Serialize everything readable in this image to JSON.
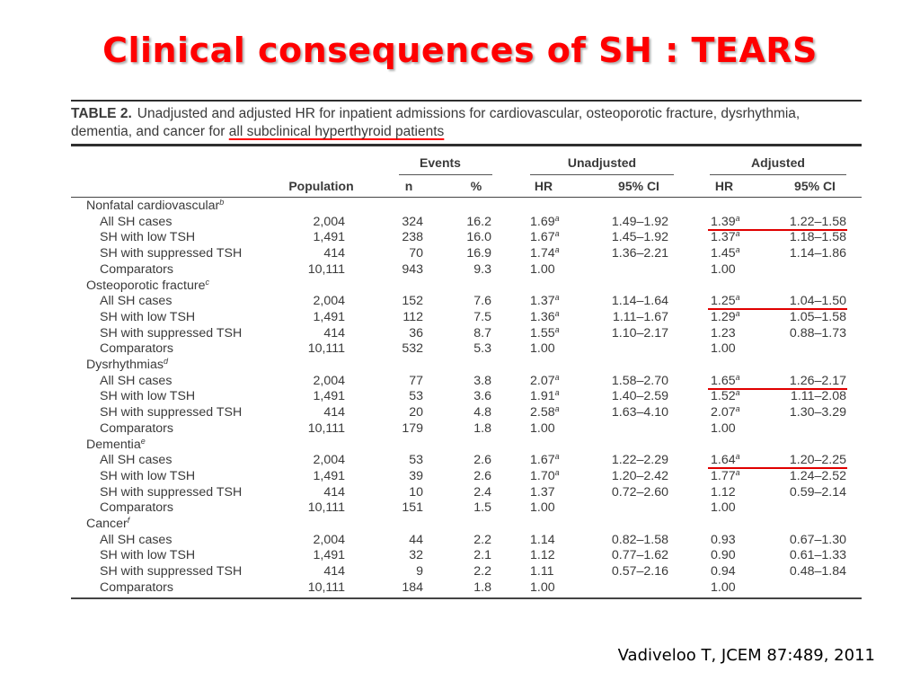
{
  "slide": {
    "title": "Clinical consequences of SH : TEARS",
    "citation": "Vadiveloo T, JCEM 87:489, 2011"
  },
  "table": {
    "label": "TABLE 2.",
    "caption_main": "Unadjusted and adjusted HR for inpatient admissions for cardiovascular, osteoporotic fracture, dysrhythmia, dementia, and cancer for ",
    "caption_underlined": "all subclinical hyperthyroid patients",
    "headers": {
      "events": "Events",
      "unadjusted": "Unadjusted",
      "adjusted": "Adjusted",
      "population": "Population",
      "n": "n",
      "pct": "%",
      "hr": "HR",
      "ci": "95% CI",
      "hr2": "HR",
      "ci2": "95% CI"
    },
    "rows": [
      {
        "kind": "group",
        "label": "Nonfatal cardiovascular",
        "sup": "b"
      },
      {
        "label": "All SH cases",
        "pop": "2,004",
        "n": "324",
        "pct": "16.2",
        "uhr": "1.69",
        "uhr_sup": "a",
        "uci": "1.49–1.92",
        "ahr": "1.39",
        "ahr_sup": "a",
        "aci": "1.22–1.58",
        "highlight": true
      },
      {
        "label": "SH with low TSH",
        "pop": "1,491",
        "n": "238",
        "pct": "16.0",
        "uhr": "1.67",
        "uhr_sup": "a",
        "uci": "1.45–1.92",
        "ahr": "1.37",
        "ahr_sup": "a",
        "aci": "1.18–1.58"
      },
      {
        "label": "SH with suppressed TSH",
        "pop": "414",
        "n": "70",
        "pct": "16.9",
        "uhr": "1.74",
        "uhr_sup": "a",
        "uci": "1.36–2.21",
        "ahr": "1.45",
        "ahr_sup": "a",
        "aci": "1.14–1.86"
      },
      {
        "label": "Comparators",
        "pop": "10,111",
        "n": "943",
        "pct": "9.3",
        "uhr": "1.00",
        "uci": "",
        "ahr": "1.00",
        "aci": ""
      },
      {
        "kind": "group",
        "label": "Osteoporotic fracture",
        "sup": "c"
      },
      {
        "label": "All SH cases",
        "pop": "2,004",
        "n": "152",
        "pct": "7.6",
        "uhr": "1.37",
        "uhr_sup": "a",
        "uci": "1.14–1.64",
        "ahr": "1.25",
        "ahr_sup": "a",
        "aci": "1.04–1.50",
        "highlight": true
      },
      {
        "label": "SH with low TSH",
        "pop": "1,491",
        "n": "112",
        "pct": "7.5",
        "uhr": "1.36",
        "uhr_sup": "a",
        "uci": "1.11–1.67",
        "ahr": "1.29",
        "ahr_sup": "a",
        "aci": "1.05–1.58"
      },
      {
        "label": "SH with suppressed TSH",
        "pop": "414",
        "n": "36",
        "pct": "8.7",
        "uhr": "1.55",
        "uhr_sup": "a",
        "uci": "1.10–2.17",
        "ahr": "1.23",
        "aci": "0.88–1.73"
      },
      {
        "label": "Comparators",
        "pop": "10,111",
        "n": "532",
        "pct": "5.3",
        "uhr": "1.00",
        "uci": "",
        "ahr": "1.00",
        "aci": ""
      },
      {
        "kind": "group",
        "label": "Dysrhythmias",
        "sup": "d"
      },
      {
        "label": "All SH cases",
        "pop": "2,004",
        "n": "77",
        "pct": "3.8",
        "uhr": "2.07",
        "uhr_sup": "a",
        "uci": "1.58–2.70",
        "ahr": "1.65",
        "ahr_sup": "a",
        "aci": "1.26–2.17",
        "highlight": true
      },
      {
        "label": "SH with low TSH",
        "pop": "1,491",
        "n": "53",
        "pct": "3.6",
        "uhr": "1.91",
        "uhr_sup": "a",
        "uci": "1.40–2.59",
        "ahr": "1.52",
        "ahr_sup": "a",
        "aci": "1.11–2.08"
      },
      {
        "label": "SH with suppressed TSH",
        "pop": "414",
        "n": "20",
        "pct": "4.8",
        "uhr": "2.58",
        "uhr_sup": "a",
        "uci": "1.63–4.10",
        "ahr": "2.07",
        "ahr_sup": "a",
        "aci": "1.30–3.29"
      },
      {
        "label": "Comparators",
        "pop": "10,111",
        "n": "179",
        "pct": "1.8",
        "uhr": "1.00",
        "uci": "",
        "ahr": "1.00",
        "aci": ""
      },
      {
        "kind": "group",
        "label": "Dementia",
        "sup": "e"
      },
      {
        "label": "All SH cases",
        "pop": "2,004",
        "n": "53",
        "pct": "2.6",
        "uhr": "1.67",
        "uhr_sup": "a",
        "uci": "1.22–2.29",
        "ahr": "1.64",
        "ahr_sup": "a",
        "aci": "1.20–2.25",
        "highlight": true
      },
      {
        "label": "SH with low TSH",
        "pop": "1,491",
        "n": "39",
        "pct": "2.6",
        "uhr": "1.70",
        "uhr_sup": "a",
        "uci": "1.20–2.42",
        "ahr": "1.77",
        "ahr_sup": "a",
        "aci": "1.24–2.52"
      },
      {
        "label": "SH with suppressed TSH",
        "pop": "414",
        "n": "10",
        "pct": "2.4",
        "uhr": "1.37",
        "uci": "0.72–2.60",
        "ahr": "1.12",
        "aci": "0.59–2.14"
      },
      {
        "label": "Comparators",
        "pop": "10,111",
        "n": "151",
        "pct": "1.5",
        "uhr": "1.00",
        "uci": "",
        "ahr": "1.00",
        "aci": ""
      },
      {
        "kind": "group",
        "label": "Cancer",
        "sup": "f"
      },
      {
        "label": "All SH cases",
        "pop": "2,004",
        "n": "44",
        "pct": "2.2",
        "uhr": "1.14",
        "uci": "0.82–1.58",
        "ahr": "0.93",
        "aci": "0.67–1.30"
      },
      {
        "label": "SH with low TSH",
        "pop": "1,491",
        "n": "32",
        "pct": "2.1",
        "uhr": "1.12",
        "uci": "0.77–1.62",
        "ahr": "0.90",
        "aci": "0.61–1.33"
      },
      {
        "label": "SH with suppressed TSH",
        "pop": "414",
        "n": "9",
        "pct": "2.2",
        "uhr": "1.11",
        "uci": "0.57–2.16",
        "ahr": "0.94",
        "aci": "0.48–1.84"
      },
      {
        "label": "Comparators",
        "pop": "10,111",
        "n": "184",
        "pct": "1.8",
        "uhr": "1.00",
        "uci": "",
        "ahr": "1.00",
        "aci": ""
      }
    ]
  },
  "colors": {
    "title": "#ff0000",
    "annotation_underline": "#e00000",
    "text": "#3a3a3a"
  }
}
